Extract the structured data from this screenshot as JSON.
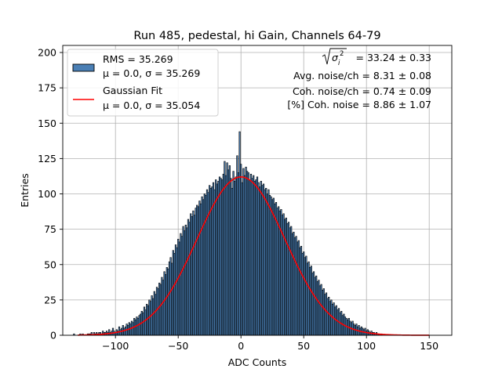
{
  "chart_data": {
    "type": "bar",
    "title": "Run 485, pedestal, hi Gain, Channels 64-79",
    "xlabel": "ADC Counts",
    "ylabel": "Entries",
    "xlim": [
      -142,
      168
    ],
    "ylim": [
      0,
      205
    ],
    "grid": true,
    "xticks": [
      -100,
      -50,
      0,
      50,
      100,
      150
    ],
    "yticks": [
      0,
      25,
      50,
      75,
      100,
      125,
      150,
      175,
      200
    ],
    "xtick_labels": [
      "−100",
      "−50",
      "0",
      "50",
      "100",
      "150"
    ],
    "ytick_labels": [
      "0",
      "25",
      "50",
      "75",
      "100",
      "125",
      "150",
      "175",
      "200"
    ],
    "histogram": {
      "name": "RMS = 35.269",
      "bin_width": 1,
      "color": "#4a7fb5",
      "edge_color": "#000000",
      "bins_x": [
        -133,
        -128,
        -126,
        -122,
        -121,
        -120,
        -119,
        -117,
        -116,
        -115,
        -114,
        -113,
        -112,
        -111,
        -110,
        -109,
        -108,
        -107,
        -106,
        -105,
        -104,
        -103,
        -102,
        -101,
        -100,
        -99,
        -98,
        -97,
        -96,
        -95,
        -94,
        -93,
        -92,
        -91,
        -90,
        -89,
        -88,
        -87,
        -86,
        -85,
        -84,
        -83,
        -82,
        -81,
        -80,
        -79,
        -78,
        -77,
        -76,
        -75,
        -74,
        -73,
        -72,
        -71,
        -70,
        -69,
        -68,
        -67,
        -66,
        -65,
        -64,
        -63,
        -62,
        -61,
        -60,
        -59,
        -58,
        -57,
        -56,
        -55,
        -54,
        -53,
        -52,
        -51,
        -50,
        -49,
        -48,
        -47,
        -46,
        -45,
        -44,
        -43,
        -42,
        -41,
        -40,
        -39,
        -38,
        -37,
        -36,
        -35,
        -34,
        -33,
        -32,
        -31,
        -30,
        -29,
        -28,
        -27,
        -26,
        -25,
        -24,
        -23,
        -22,
        -21,
        -20,
        -19,
        -18,
        -17,
        -16,
        -15,
        -14,
        -13,
        -12,
        -11,
        -10,
        -9,
        -8,
        -7,
        -6,
        -5,
        -4,
        -3,
        -2,
        -1,
        0,
        1,
        2,
        3,
        4,
        5,
        6,
        7,
        8,
        9,
        10,
        11,
        12,
        13,
        14,
        15,
        16,
        17,
        18,
        19,
        20,
        21,
        22,
        23,
        24,
        25,
        26,
        27,
        28,
        29,
        30,
        31,
        32,
        33,
        34,
        35,
        36,
        37,
        38,
        39,
        40,
        41,
        42,
        43,
        44,
        45,
        46,
        47,
        48,
        49,
        50,
        51,
        52,
        53,
        54,
        55,
        56,
        57,
        58,
        59,
        60,
        61,
        62,
        63,
        64,
        65,
        66,
        67,
        68,
        69,
        70,
        71,
        72,
        73,
        74,
        75,
        76,
        77,
        78,
        79,
        80,
        81,
        82,
        83,
        84,
        85,
        86,
        87,
        88,
        89,
        90,
        91,
        92,
        93,
        94,
        95,
        96,
        97,
        98,
        99,
        100,
        101,
        102,
        103,
        104,
        105,
        106,
        107,
        108,
        109,
        110,
        112,
        114,
        116,
        118,
        122,
        126,
        130,
        138,
        146,
        153
      ],
      "bins_y": [
        1,
        1,
        1,
        1,
        1,
        1,
        2,
        2,
        1,
        2,
        1,
        2,
        2,
        1,
        3,
        2,
        2,
        3,
        2,
        4,
        2,
        3,
        5,
        3,
        2,
        4,
        3,
        6,
        4,
        5,
        7,
        5,
        6,
        8,
        7,
        9,
        8,
        10,
        9,
        12,
        11,
        13,
        12,
        14,
        15,
        17,
        16,
        20,
        18,
        22,
        21,
        25,
        24,
        28,
        26,
        31,
        29,
        34,
        33,
        37,
        36,
        41,
        39,
        45,
        43,
        48,
        47,
        52,
        55,
        51,
        60,
        58,
        64,
        62,
        68,
        66,
        72,
        70,
        77,
        74,
        78,
        76,
        82,
        80,
        86,
        84,
        88,
        85,
        90,
        92,
        91,
        95,
        93,
        98,
        96,
        100,
        99,
        103,
        101,
        106,
        104,
        105,
        108,
        103,
        110,
        107,
        109,
        112,
        111,
        110,
        114,
        123,
        113,
        122,
        117,
        120,
        111,
        104,
        116,
        109,
        112,
        127,
        115,
        144,
        121,
        108,
        118,
        113,
        119,
        116,
        115,
        110,
        114,
        111,
        113,
        109,
        110,
        112,
        108,
        105,
        109,
        106,
        107,
        103,
        104,
        100,
        103,
        99,
        98,
        96,
        97,
        93,
        94,
        90,
        91,
        88,
        89,
        85,
        86,
        82,
        83,
        79,
        80,
        76,
        77,
        72,
        73,
        69,
        70,
        66,
        67,
        62,
        63,
        58,
        59,
        55,
        56,
        51,
        52,
        48,
        49,
        44,
        45,
        41,
        42,
        38,
        39,
        35,
        36,
        32,
        33,
        29,
        30,
        26,
        27,
        24,
        25,
        22,
        23,
        20,
        21,
        18,
        19,
        16,
        17,
        14,
        15,
        13,
        12,
        11,
        12,
        10,
        9,
        10,
        8,
        7,
        8,
        6,
        7,
        5,
        6,
        5,
        4,
        5,
        3,
        4,
        3,
        2,
        3,
        2,
        2,
        1,
        2,
        1,
        1,
        1
      ]
    },
    "gaussian_fit": {
      "name": "Gaussian Fit",
      "color": "#ff0000",
      "mu": 0.0,
      "sigma": 35.054,
      "amplitude": 112,
      "x_range": [
        -130,
        150
      ]
    },
    "legend": {
      "placement": "top-left",
      "entries": [
        {
          "line1": "RMS = 35.269",
          "line2": "μ = 0.0, σ = 35.269"
        },
        {
          "line1": "Gaussian Fit",
          "line2": "μ = 0.0, σ = 35.054"
        }
      ]
    },
    "annotations": [
      "= 33.24 ± 0.33",
      "Avg. noise/ch = 8.31 ± 0.08",
      "Coh. noise/ch = 0.74 ± 0.09",
      "[%] Coh. noise = 8.86 ± 1.07"
    ],
    "sqrt_symbol": "σ",
    "sqrt_subscript": "i",
    "sqrt_superscript": "2"
  }
}
